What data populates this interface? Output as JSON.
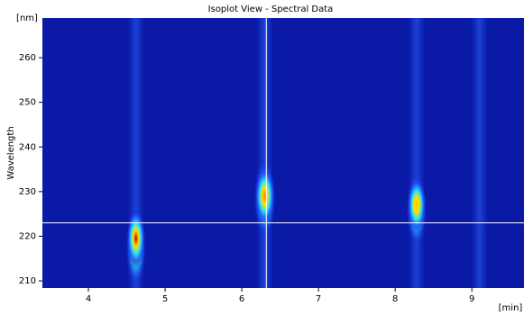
{
  "chart_data": {
    "type": "isoplot",
    "title": "Isoplot View - Spectral Data",
    "y_label": "Wavelength",
    "y_unit": "[nm]",
    "x_unit": "[min]",
    "xlim": [
      3.4,
      9.68
    ],
    "xticks": [
      4,
      5,
      6,
      7,
      8,
      9
    ],
    "ylim": [
      208.4,
      268.9
    ],
    "yticks": [
      210,
      220,
      230,
      240,
      250,
      260
    ],
    "background": "#0a1aa6",
    "peaks": [
      {
        "x": 4.62,
        "y": 219.5,
        "y_range": [
          209,
          226
        ],
        "x_width": 0.13,
        "core_color": "#c40000"
      },
      {
        "x": 6.3,
        "y": 229,
        "y_range": [
          220,
          237
        ],
        "x_width": 0.14,
        "core_color": "#ff7a00"
      },
      {
        "x": 8.28,
        "y": 227,
        "y_range": [
          218,
          234
        ],
        "x_width": 0.13,
        "core_color": "#ffd000"
      }
    ],
    "streaks": [
      4.62,
      6.3,
      8.28,
      9.1
    ],
    "crosshair": {
      "x": 6.32,
      "y": 223,
      "color": "#ffffff"
    }
  }
}
